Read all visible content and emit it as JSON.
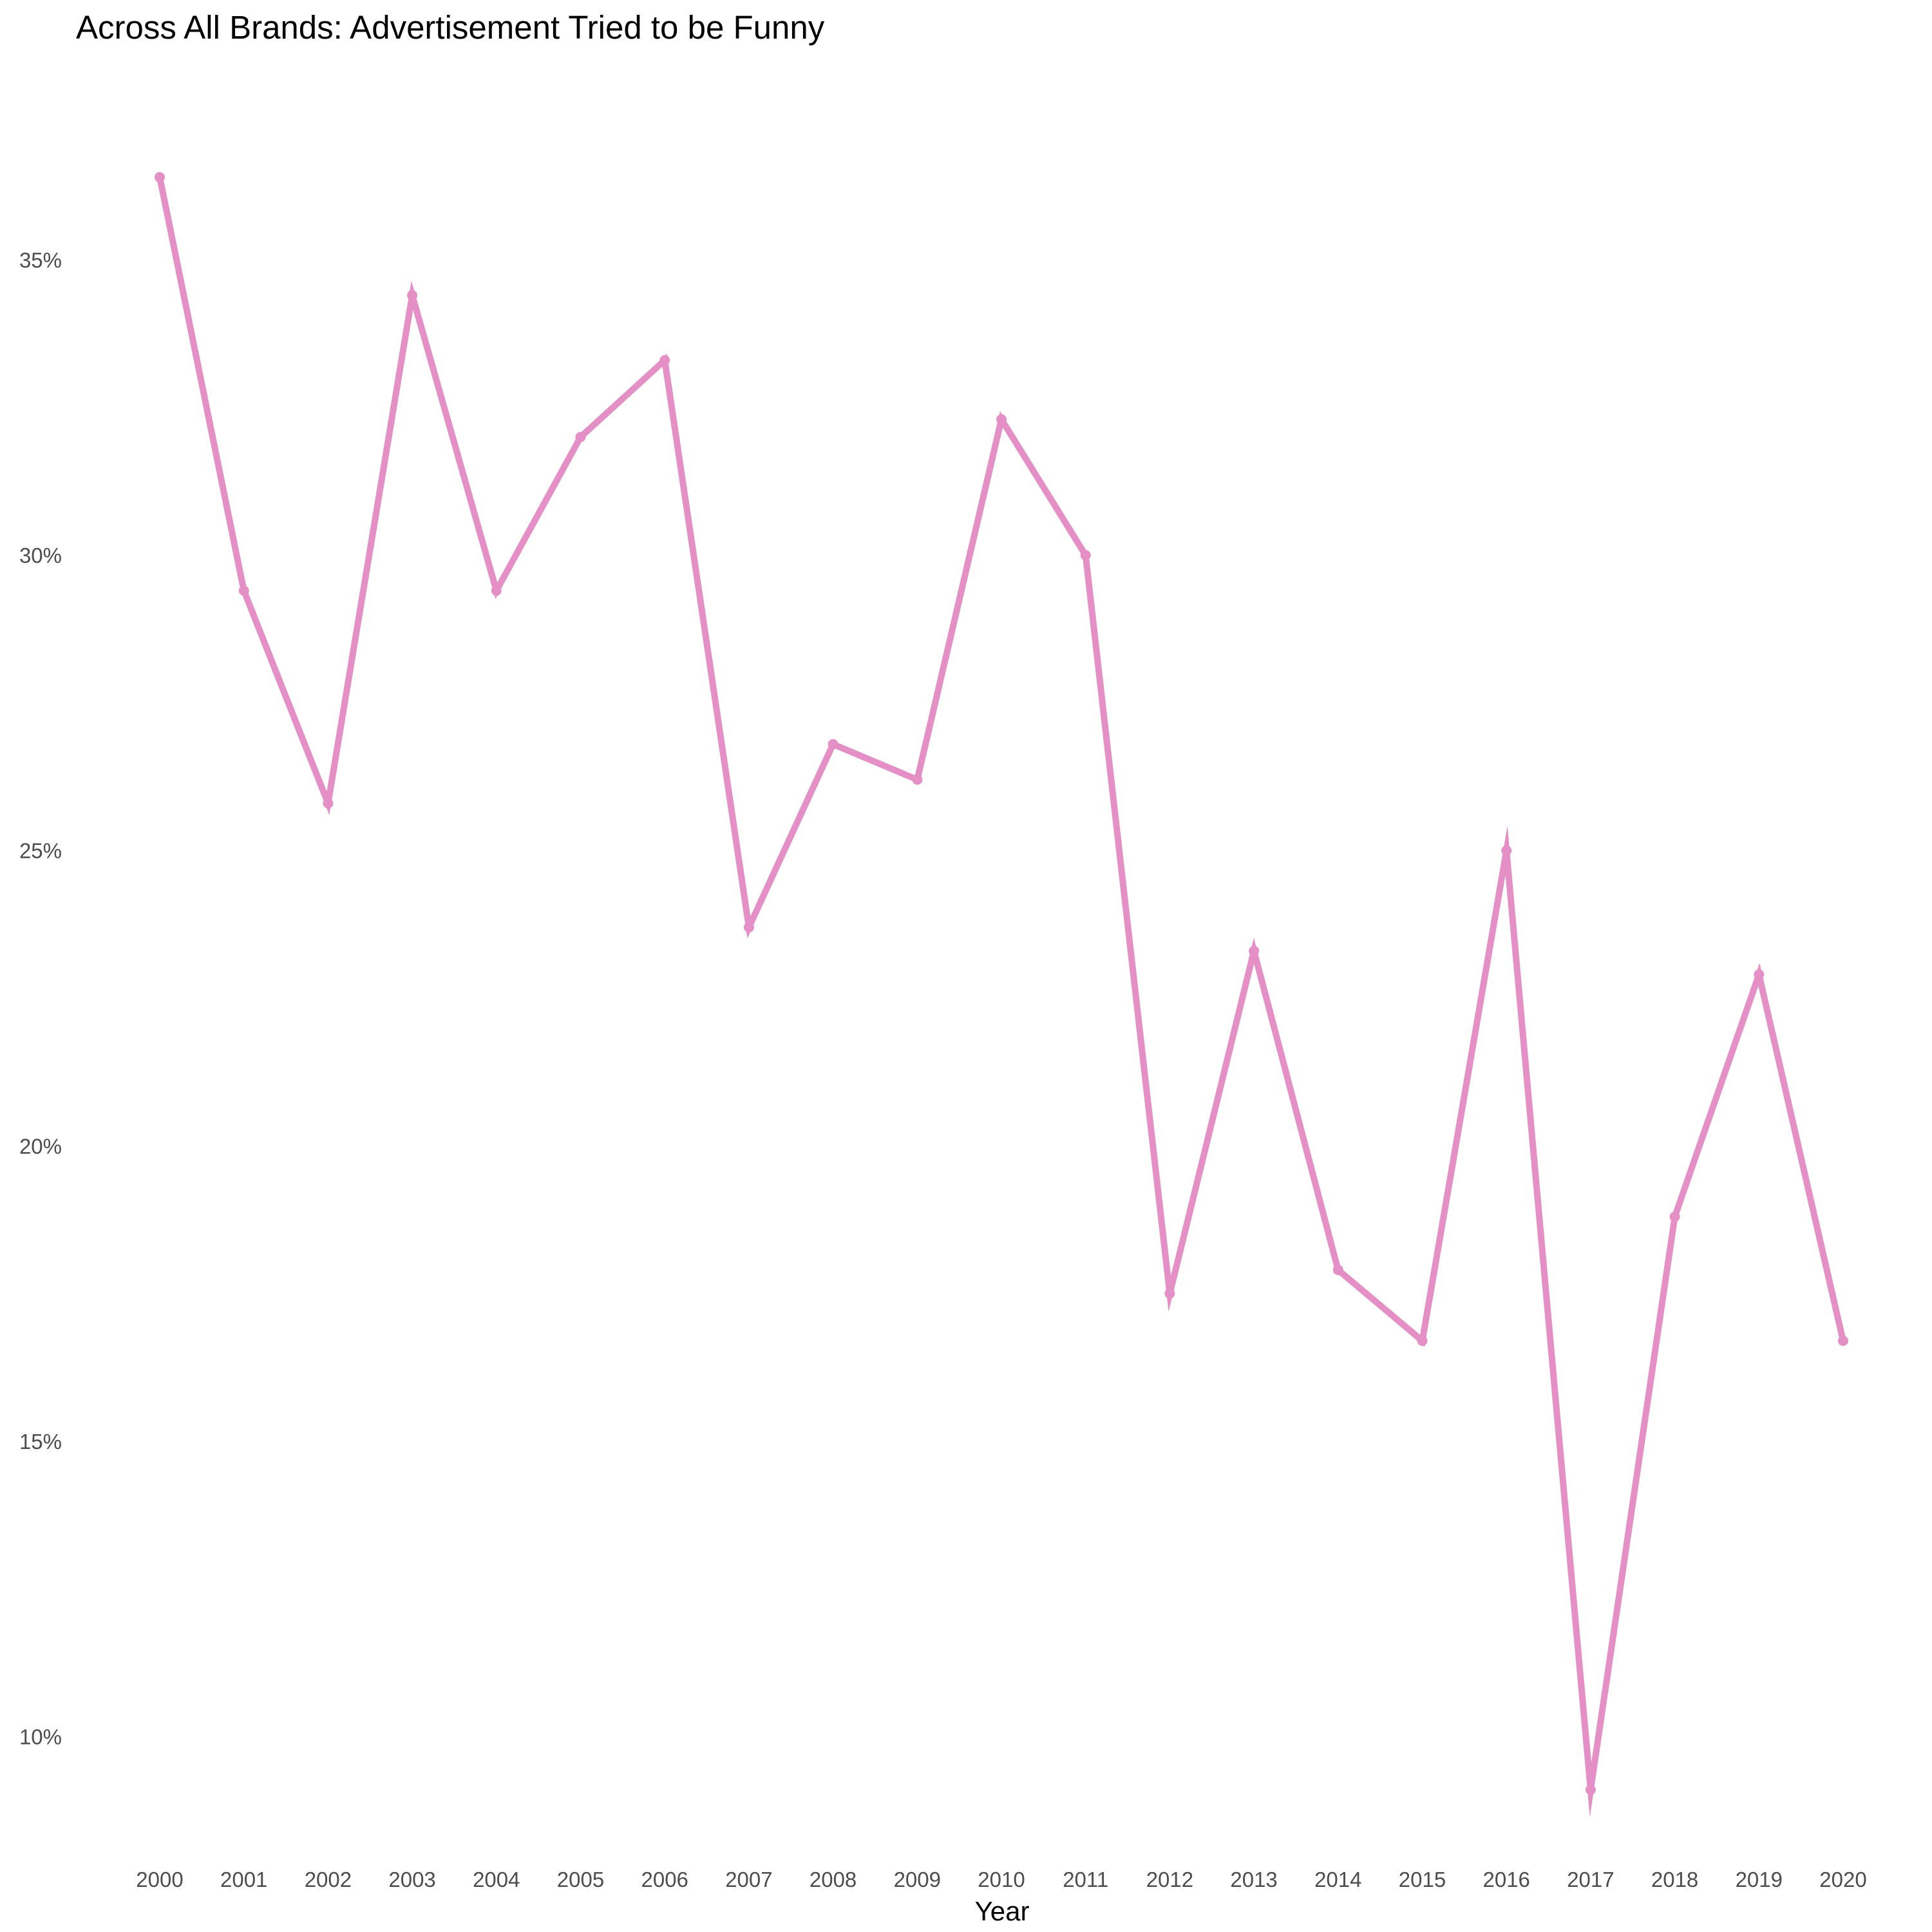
{
  "chart_data": {
    "type": "line",
    "title": "Across All Brands: Advertisement Tried to be Funny",
    "xlabel": "Year",
    "ylabel": "",
    "categories": [
      "2000",
      "2001",
      "2002",
      "2003",
      "2004",
      "2005",
      "2006",
      "2007",
      "2008",
      "2009",
      "2010",
      "2011",
      "2012",
      "2013",
      "2014",
      "2015",
      "2016",
      "2017",
      "2018",
      "2019",
      "2020"
    ],
    "series": [
      {
        "values": [
          36.4,
          29.4,
          25.8,
          34.4,
          29.4,
          32.0,
          33.3,
          23.7,
          26.8,
          26.2,
          32.3,
          30.0,
          17.5,
          23.3,
          17.9,
          16.7,
          25.0,
          9.1,
          18.8,
          22.9,
          16.7
        ],
        "color": "#e58fc7"
      }
    ],
    "yticks": [
      10,
      15,
      20,
      25,
      30,
      35
    ],
    "ytick_labels": [
      "10%",
      "15%",
      "20%",
      "25%",
      "30%",
      "35%"
    ],
    "ylim": [
      8.0,
      37.6
    ],
    "grid": false,
    "legend": "none",
    "value_format": "percent"
  }
}
